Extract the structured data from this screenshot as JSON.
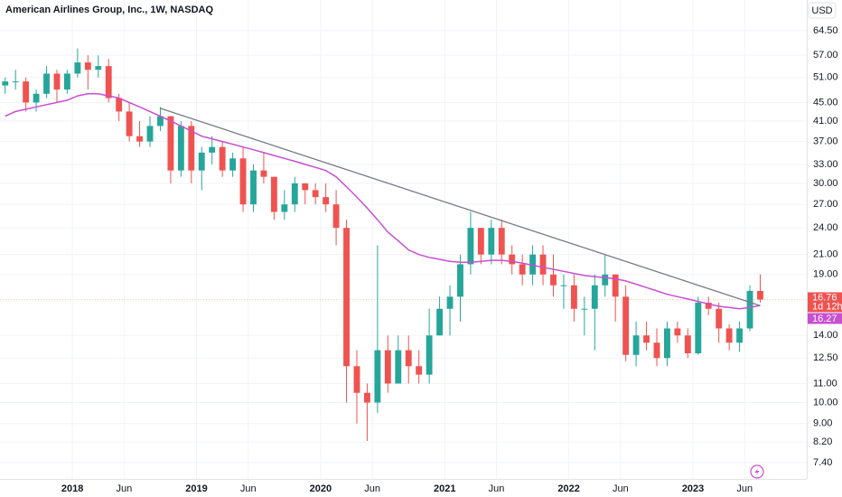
{
  "chart_data": {
    "type": "candlestick",
    "title": "American Airlines Group, Inc., 1W, NASDAQ",
    "currency": "USD",
    "x": [
      "2017-06",
      "2017-07",
      "2017-08",
      "2017-09",
      "2017-10",
      "2017-11",
      "2017-12",
      "2018-01",
      "2018-02",
      "2018-03",
      "2018-04",
      "2018-05",
      "2018-06",
      "2018-07",
      "2018-08",
      "2018-09",
      "2018-10",
      "2018-11",
      "2018-12",
      "2019-01",
      "2019-02",
      "2019-03",
      "2019-04",
      "2019-05",
      "2019-06",
      "2019-07",
      "2019-08",
      "2019-09",
      "2019-10",
      "2019-11",
      "2019-12",
      "2020-01",
      "2020-02",
      "2020-03",
      "2020-04",
      "2020-05",
      "2020-06",
      "2020-07",
      "2020-08",
      "2020-09",
      "2020-10",
      "2020-11",
      "2020-12",
      "2021-01",
      "2021-02",
      "2021-03",
      "2021-04",
      "2021-05",
      "2021-06",
      "2021-07",
      "2021-08",
      "2021-09",
      "2021-10",
      "2021-11",
      "2021-12",
      "2022-01",
      "2022-02",
      "2022-03",
      "2022-04",
      "2022-05",
      "2022-06",
      "2022-07",
      "2022-08",
      "2022-09",
      "2022-10",
      "2022-11",
      "2022-12",
      "2023-01",
      "2023-02",
      "2023-03",
      "2023-04",
      "2023-05",
      "2023-06",
      "2023-07"
    ],
    "open": [
      49,
      50,
      50,
      45,
      47,
      52,
      48,
      52,
      55,
      53,
      54,
      46,
      43,
      38,
      37,
      40,
      42,
      32,
      40,
      32,
      35,
      36,
      32,
      34,
      27,
      32,
      31,
      26,
      27,
      30,
      29,
      28,
      27,
      24,
      12,
      10.5,
      10,
      13,
      11,
      13,
      12,
      11.5,
      14,
      16,
      17,
      20,
      24,
      21,
      24,
      21,
      20,
      19,
      21,
      19,
      18,
      18,
      16,
      16,
      18,
      19,
      17,
      12.7,
      14,
      13.5,
      12.5,
      14.5,
      14,
      12.8,
      16.5,
      16,
      14.5,
      13.5,
      14.5,
      17.5
    ],
    "high": [
      51,
      53,
      51,
      48,
      54,
      53,
      53,
      59,
      57,
      57,
      56,
      47,
      45,
      41,
      42,
      44,
      42,
      41,
      41,
      36,
      38,
      37,
      35,
      36,
      33,
      35,
      31,
      29,
      31,
      30,
      30,
      30,
      29,
      25,
      13,
      11,
      22,
      14,
      14,
      14,
      13,
      16,
      17,
      18,
      21,
      26,
      24,
      25,
      25,
      22,
      21,
      22,
      22,
      21,
      19,
      19,
      17,
      19,
      21,
      19,
      18,
      15,
      15,
      14.5,
      15,
      15,
      14.5,
      17,
      17,
      16.5,
      14.8,
      15,
      18,
      19
    ],
    "low": [
      47,
      48,
      43,
      43,
      46,
      45,
      47,
      51,
      48,
      51,
      45,
      41,
      37,
      36,
      36,
      39,
      30,
      31,
      30,
      29,
      33,
      31,
      31,
      26,
      26,
      30,
      25,
      25,
      26,
      27,
      27,
      26,
      22,
      10,
      9,
      8.25,
      9.5,
      10.5,
      11,
      11,
      11,
      11,
      14,
      14,
      15,
      19,
      20,
      20,
      20,
      19,
      18,
      18,
      18,
      17,
      16,
      15,
      14,
      13,
      17,
      15,
      12.3,
      12,
      13,
      12,
      12,
      13.5,
      12.5,
      12.7,
      15.5,
      13.5,
      13,
      12.9,
      14.3,
      16.5
    ],
    "close": [
      50,
      50,
      45,
      47,
      52,
      48,
      52,
      55,
      53,
      54,
      46,
      43,
      38,
      37,
      40,
      42,
      32,
      40,
      32,
      35,
      36,
      32,
      34,
      27,
      32,
      31,
      26,
      27,
      30,
      29,
      28,
      27,
      24,
      12,
      10.5,
      10,
      13,
      11,
      13,
      12,
      11.5,
      14,
      16,
      17,
      20,
      24,
      21,
      24,
      21,
      20,
      19,
      21,
      19,
      18,
      18,
      16,
      16,
      18,
      19,
      17,
      12.7,
      14,
      13.5,
      12.5,
      14.5,
      14,
      12.8,
      16.5,
      16,
      14.5,
      13.5,
      14.5,
      17.5,
      16.76
    ],
    "up_color": "#26a69a",
    "down_color": "#ef5350",
    "ma": {
      "color": "#c84fd0",
      "values": [
        42,
        43,
        43.5,
        44,
        44.5,
        45,
        45.5,
        46.5,
        47,
        47,
        46.5,
        46,
        45,
        44,
        43,
        42,
        41,
        40,
        39,
        38,
        37.5,
        37,
        36.5,
        36,
        35.5,
        35,
        34.5,
        34,
        33.5,
        33,
        32.5,
        32,
        31,
        29.5,
        28,
        26.5,
        25,
        23.5,
        22.5,
        21.5,
        21,
        20.7,
        20.5,
        20.3,
        20.2,
        20.2,
        20.3,
        20.4,
        20.4,
        20.3,
        20.1,
        19.9,
        19.7,
        19.5,
        19.3,
        19.1,
        18.9,
        18.8,
        18.7,
        18.6,
        18.4,
        18.1,
        17.8,
        17.5,
        17.2,
        17,
        16.8,
        16.6,
        16.4,
        16.2,
        16.1,
        16,
        16.1,
        16.27
      ]
    },
    "trendline": {
      "color": "#787b86",
      "start": {
        "x": "2018-09",
        "y": 43.7
      },
      "end": {
        "x": "2023-07",
        "y": 16.25
      }
    },
    "countdown": "1d 12h",
    "log_scale": true,
    "grid": true,
    "ylim": [
      6.82,
      75.2
    ],
    "yticks": [
      {
        "value": 64.5,
        "label": "64.50"
      },
      {
        "value": 57,
        "label": "57.00"
      },
      {
        "value": 51,
        "label": "51.00"
      },
      {
        "value": 45,
        "label": "45.00"
      },
      {
        "value": 41,
        "label": "41.00"
      },
      {
        "value": 37,
        "label": "37.00"
      },
      {
        "value": 33,
        "label": "33.00"
      },
      {
        "value": 30,
        "label": "30.00"
      },
      {
        "value": 27,
        "label": "27.00"
      },
      {
        "value": 24,
        "label": "24.00"
      },
      {
        "value": 21,
        "label": "21.00"
      },
      {
        "value": 19,
        "label": "19.00"
      },
      {
        "value": 14,
        "label": "14.00"
      },
      {
        "value": 12.5,
        "label": "12.50"
      },
      {
        "value": 11,
        "label": "11.00"
      },
      {
        "value": 10,
        "label": "10.00"
      },
      {
        "value": 9,
        "label": "9.00"
      },
      {
        "value": 8.2,
        "label": "8.20"
      },
      {
        "value": 7.4,
        "label": "7.40"
      }
    ],
    "xlim": [
      "2017-06",
      "2023-12"
    ],
    "xticks": [
      {
        "value": "2018-01",
        "label": "2018"
      },
      {
        "value": "2018-06",
        "label": "Jun"
      },
      {
        "value": "2019-01",
        "label": "2019"
      },
      {
        "value": "2019-06",
        "label": "Jun"
      },
      {
        "value": "2020-01",
        "label": "2020"
      },
      {
        "value": "2020-06",
        "label": "Jun"
      },
      {
        "value": "2021-01",
        "label": "2021"
      },
      {
        "value": "2021-06",
        "label": "Jun"
      },
      {
        "value": "2022-01",
        "label": "2022"
      },
      {
        "value": "2022-06",
        "label": "Jun"
      },
      {
        "value": "2023-01",
        "label": "2023"
      },
      {
        "value": "2023-06",
        "label": "Jun"
      }
    ]
  }
}
